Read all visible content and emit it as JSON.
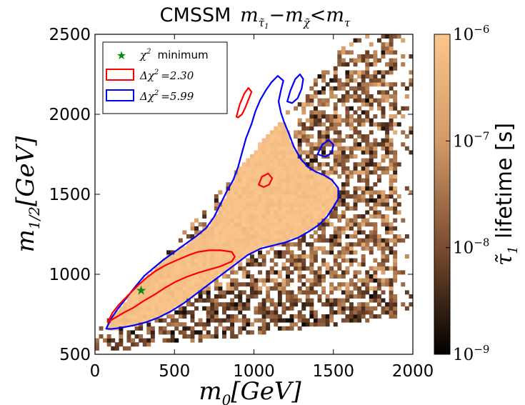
{
  "chart_data": {
    "type": "heatmap",
    "title_prefix": "CMSSM",
    "title_math": "m",
    "title_sub1": "τ̃",
    "title_sub1b": "1",
    "title_minus": "−m",
    "title_sub2": "χ̃",
    "title_lt": "<m",
    "title_sub3": "τ",
    "xlabel_main": "m",
    "xlabel_sub": "0",
    "xlabel_unit": "[GeV]",
    "ylabel_main": "m",
    "ylabel_sub": "1/2",
    "ylabel_unit": "[GeV]",
    "xlim": [
      0,
      2000
    ],
    "ylim": [
      500,
      2500
    ],
    "xticks": [
      "0",
      "500",
      "1000",
      "1500",
      "2000"
    ],
    "yticks": [
      "500",
      "1000",
      "1500",
      "2000",
      "2500"
    ],
    "xtick_values": [
      0,
      500,
      1000,
      1500,
      2000
    ],
    "ytick_values": [
      500,
      1000,
      1500,
      2000,
      2500
    ],
    "colorbar": {
      "label_sym": "τ̃",
      "label_sub": "1",
      "label_text": "lifetime [s]",
      "scale": "log",
      "range": [
        1e-09,
        1e-06
      ],
      "ticks": [
        {
          "base": "10",
          "exp": "−6",
          "value": 1e-06
        },
        {
          "base": "10",
          "exp": "−7",
          "value": 1e-07
        },
        {
          "base": "10",
          "exp": "−8",
          "value": 1e-08
        },
        {
          "base": "10",
          "exp": "−9",
          "value": 1e-09
        }
      ],
      "colors": [
        "#000000",
        "#7a4c30",
        "#d19a68",
        "#fbc68c"
      ]
    },
    "legend": {
      "placement": "top-left",
      "entries": [
        {
          "label_math": "χ",
          "label_exp": "2",
          "label_text": "minimum",
          "kind": "star",
          "color": "#0a8a0a"
        },
        {
          "label_math": "Δχ",
          "label_exp": "2",
          "label_text": "=2.30",
          "kind": "patch",
          "color": "#ff0000"
        },
        {
          "label_math": "Δχ",
          "label_exp": "2",
          "label_text": "=5.99",
          "kind": "patch",
          "color": "#0000ff"
        }
      ]
    },
    "best_fit": {
      "x": 290,
      "y": 900,
      "color": "#0a8a0a"
    },
    "region_pale_lifetime": 1e-06,
    "scatter_lifetime_range": [
      1e-09,
      3e-07
    ],
    "contour_230": [
      [
        [
          80,
          700
        ],
        [
          110,
          760
        ],
        [
          150,
          810
        ],
        [
          190,
          850
        ],
        [
          230,
          890
        ],
        [
          270,
          930
        ],
        [
          320,
          975
        ],
        [
          380,
          1020
        ],
        [
          450,
          1060
        ],
        [
          520,
          1090
        ],
        [
          590,
          1120
        ],
        [
          650,
          1140
        ],
        [
          720,
          1150
        ],
        [
          790,
          1150
        ],
        [
          860,
          1140
        ],
        [
          880,
          1110
        ],
        [
          860,
          1080
        ],
        [
          790,
          1050
        ],
        [
          720,
          1030
        ],
        [
          650,
          1010
        ],
        [
          580,
          985
        ],
        [
          510,
          955
        ],
        [
          440,
          915
        ],
        [
          370,
          870
        ],
        [
          300,
          830
        ],
        [
          240,
          790
        ],
        [
          180,
          760
        ],
        [
          130,
          730
        ],
        [
          95,
          710
        ]
      ],
      [
        [
          890,
          1985
        ],
        [
          910,
          2060
        ],
        [
          940,
          2130
        ],
        [
          965,
          2165
        ],
        [
          985,
          2140
        ],
        [
          965,
          2090
        ],
        [
          945,
          2040
        ],
        [
          925,
          2000
        ],
        [
          900,
          1980
        ]
      ],
      [
        [
          1030,
          1560
        ],
        [
          1050,
          1610
        ],
        [
          1090,
          1630
        ],
        [
          1115,
          1600
        ],
        [
          1095,
          1560
        ],
        [
          1060,
          1545
        ]
      ]
    ],
    "contour_599": [
      [
        [
          70,
          660
        ],
        [
          100,
          720
        ],
        [
          140,
          780
        ],
        [
          180,
          830
        ],
        [
          220,
          880
        ],
        [
          260,
          930
        ],
        [
          310,
          990
        ],
        [
          370,
          1040
        ],
        [
          430,
          1090
        ],
        [
          500,
          1140
        ],
        [
          570,
          1190
        ],
        [
          640,
          1240
        ],
        [
          700,
          1290
        ],
        [
          750,
          1360
        ],
        [
          790,
          1440
        ],
        [
          830,
          1520
        ],
        [
          870,
          1590
        ],
        [
          900,
          1670
        ],
        [
          925,
          1760
        ],
        [
          950,
          1850
        ],
        [
          985,
          1940
        ],
        [
          1010,
          2020
        ],
        [
          1040,
          2090
        ],
        [
          1075,
          2150
        ],
        [
          1110,
          2200
        ],
        [
          1150,
          2240
        ],
        [
          1185,
          2210
        ],
        [
          1170,
          2150
        ],
        [
          1155,
          2080
        ],
        [
          1170,
          2010
        ],
        [
          1190,
          1950
        ],
        [
          1220,
          1880
        ],
        [
          1250,
          1800
        ],
        [
          1295,
          1720
        ],
        [
          1340,
          1670
        ],
        [
          1390,
          1640
        ],
        [
          1440,
          1620
        ],
        [
          1490,
          1590
        ],
        [
          1530,
          1540
        ],
        [
          1535,
          1480
        ],
        [
          1500,
          1420
        ],
        [
          1460,
          1360
        ],
        [
          1410,
          1310
        ],
        [
          1350,
          1270
        ],
        [
          1280,
          1230
        ],
        [
          1200,
          1200
        ],
        [
          1120,
          1180
        ],
        [
          1040,
          1160
        ],
        [
          960,
          1120
        ],
        [
          880,
          1060
        ],
        [
          800,
          1000
        ],
        [
          720,
          940
        ],
        [
          640,
          880
        ],
        [
          560,
          820
        ],
        [
          480,
          770
        ],
        [
          400,
          730
        ],
        [
          320,
          700
        ],
        [
          240,
          680
        ],
        [
          160,
          665
        ],
        [
          100,
          658
        ]
      ],
      [
        [
          1210,
          2080
        ],
        [
          1230,
          2150
        ],
        [
          1260,
          2220
        ],
        [
          1290,
          2250
        ],
        [
          1310,
          2220
        ],
        [
          1300,
          2160
        ],
        [
          1275,
          2100
        ],
        [
          1240,
          2070
        ]
      ],
      [
        [
          1400,
          1750
        ],
        [
          1430,
          1810
        ],
        [
          1470,
          1840
        ],
        [
          1500,
          1810
        ],
        [
          1490,
          1760
        ],
        [
          1450,
          1735
        ]
      ]
    ]
  }
}
